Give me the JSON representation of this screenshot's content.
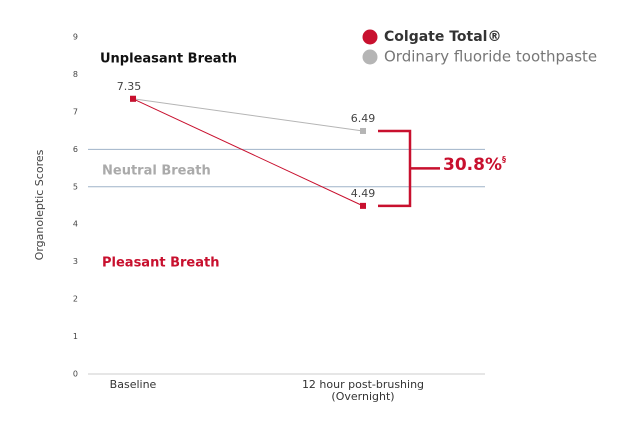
{
  "chart_data": {
    "type": "line",
    "y_label": "Organoleptic Scores",
    "categories": [
      "Baseline",
      "12 hour post-brushing (Overnight)"
    ],
    "series": [
      {
        "name": "Colgate Total®",
        "color": "#c8102e",
        "values": [
          7.35,
          4.49
        ]
      },
      {
        "name": "Ordinary fluoride toothpaste",
        "color": "#b5b5b5",
        "values": [
          7.35,
          6.49
        ]
      }
    ],
    "ylim": [
      0,
      9
    ],
    "yticks": [
      0,
      1,
      2,
      3,
      4,
      5,
      6,
      7,
      8,
      9
    ],
    "reference_lines": [
      5,
      6
    ],
    "zones": [
      "Unpleasant Breath",
      "Neutral Breath",
      "Pleasant Breath"
    ],
    "annotation": {
      "text": "30.8%",
      "superscript": "§"
    },
    "legend": "top-right"
  }
}
